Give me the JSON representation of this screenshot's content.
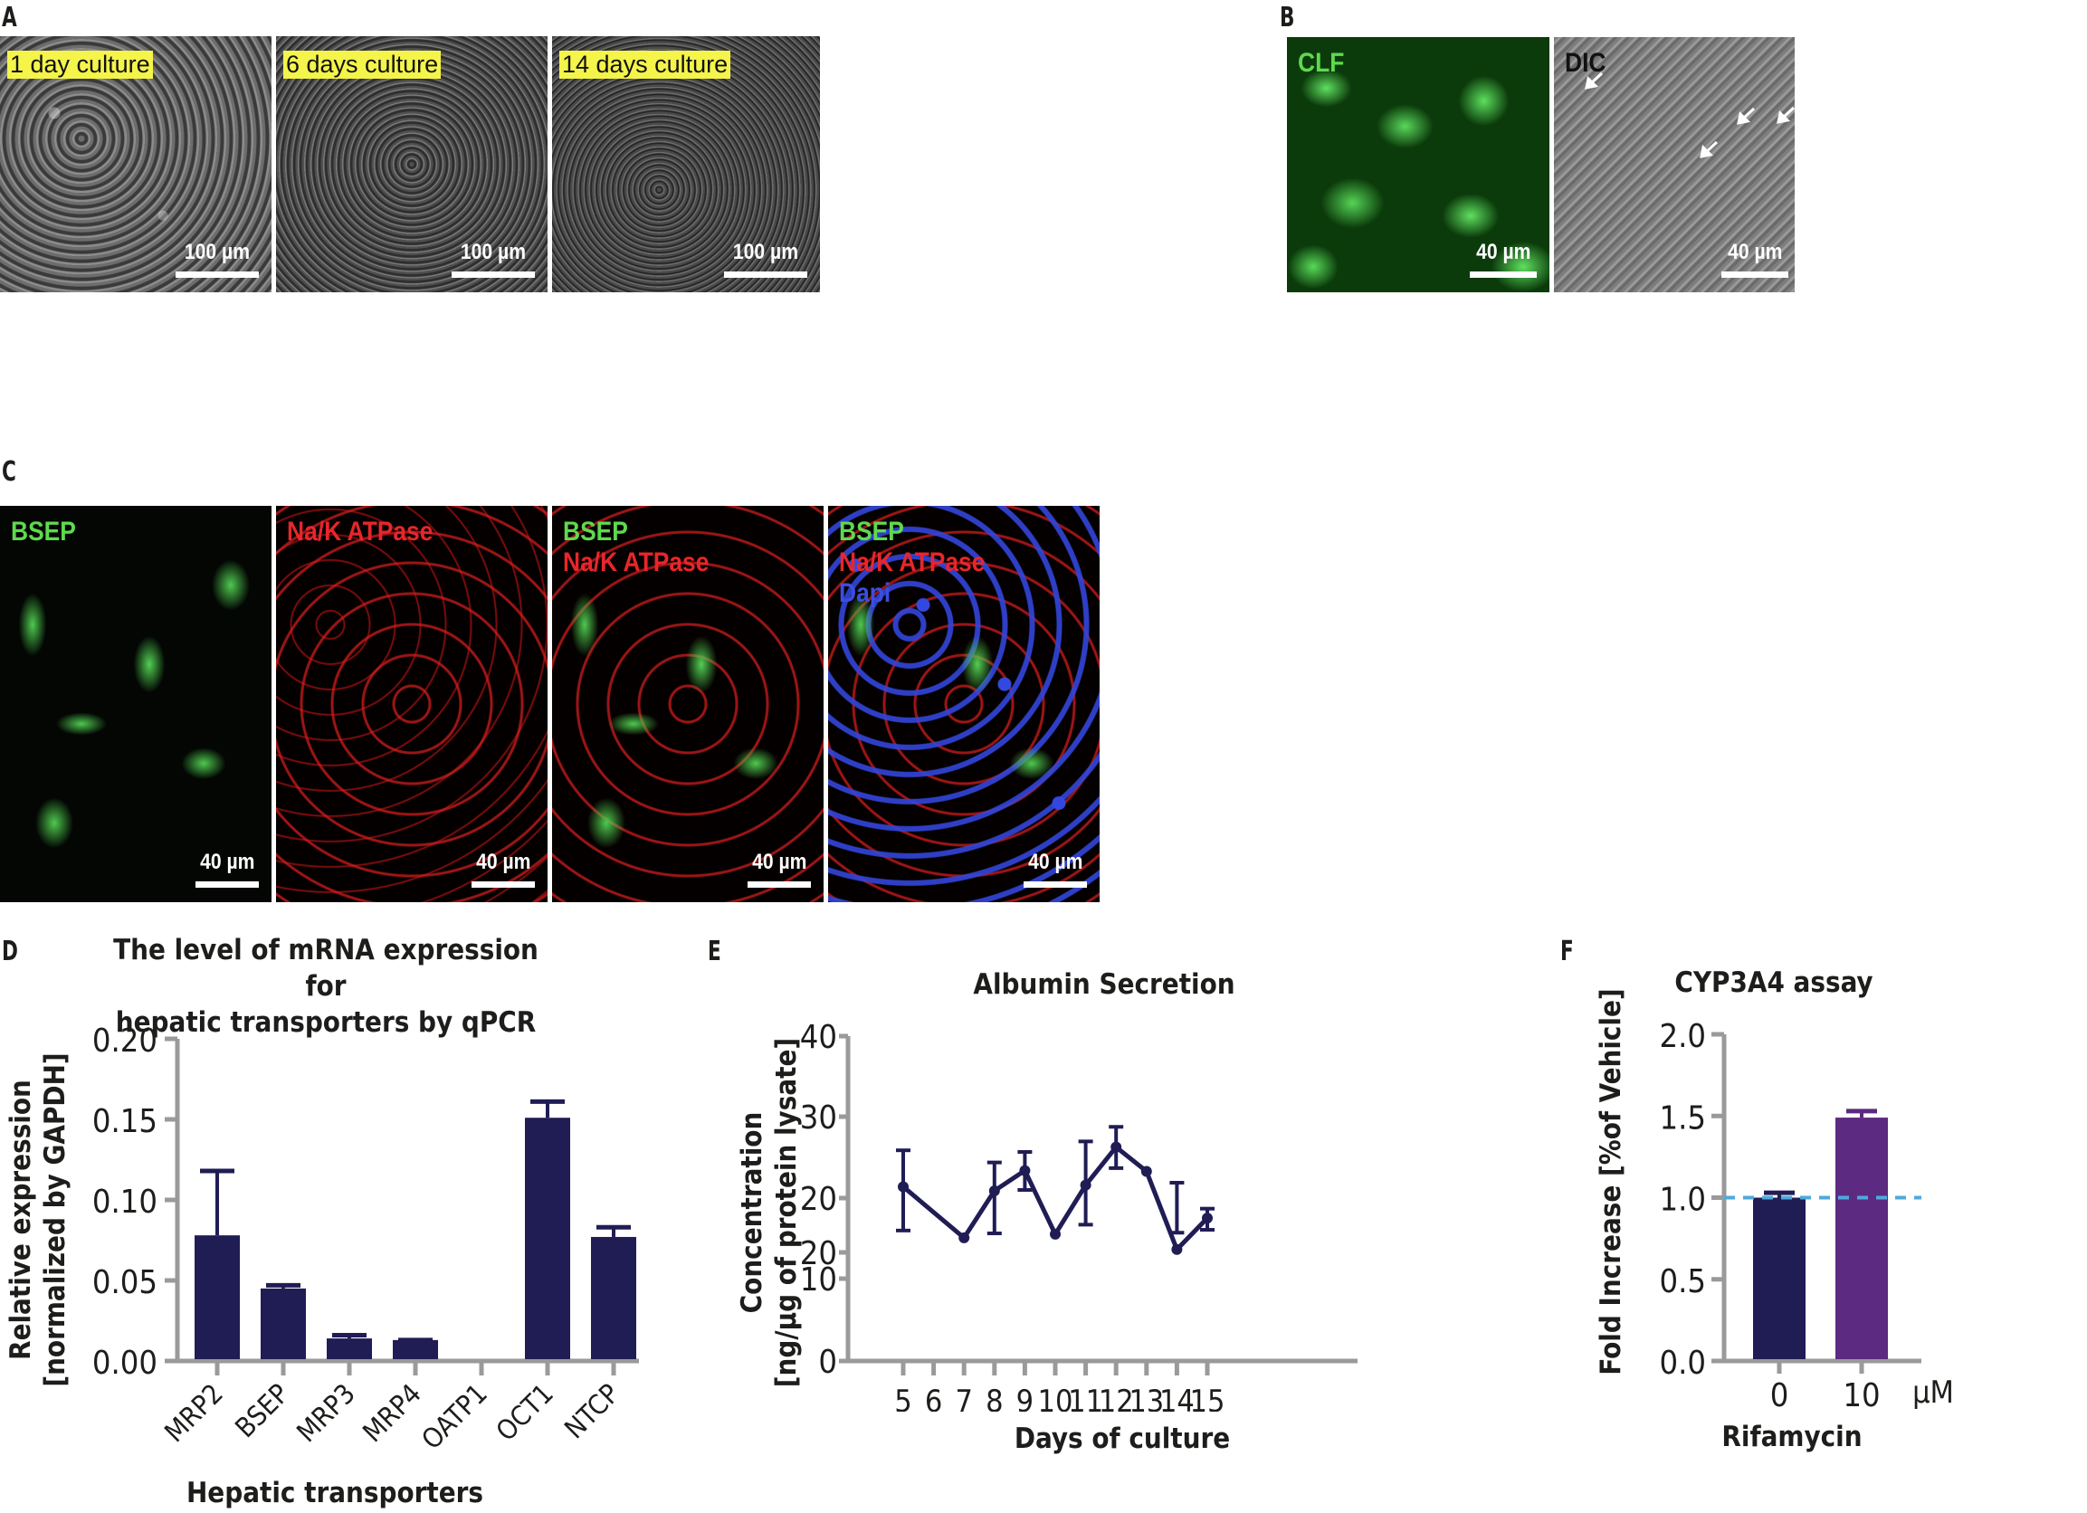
{
  "panels": {
    "A": {
      "letter": "A",
      "images": [
        {
          "label": "1 day culture",
          "scale": "100 µm"
        },
        {
          "label": "6 days culture",
          "scale": "100 µm"
        },
        {
          "label": "14 days culture",
          "scale": "100 µm"
        }
      ]
    },
    "B": {
      "letter": "B",
      "images": [
        {
          "label": "CLF",
          "scale": "40 µm"
        },
        {
          "label": "DIC",
          "scale": "40 µm"
        }
      ]
    },
    "C": {
      "letter": "C",
      "images": [
        {
          "labels": [
            "BSEP"
          ],
          "scale": "40 µm"
        },
        {
          "labels": [
            "Na/K ATPase"
          ],
          "scale": "40 µm"
        },
        {
          "labels": [
            "BSEP",
            "Na/K ATPase"
          ],
          "scale": "40 µm"
        },
        {
          "labels": [
            "BSEP",
            "Na/K ATPase",
            "Dapi"
          ],
          "scale": "40 µm"
        }
      ]
    },
    "D": {
      "letter": "D"
    },
    "E": {
      "letter": "E"
    },
    "F": {
      "letter": "F"
    }
  },
  "colors": {
    "navy": "#201d55",
    "purple": "#5c2a80",
    "axis_gray": "#9a9a9a",
    "dashed_blue": "#4fa9dc",
    "fluor_green": "#5fd94f",
    "fluor_red": "#e8262b",
    "dapi_blue": "#3a4fe0",
    "label_yellow": "#f4f44a"
  },
  "chart_data": [
    {
      "panel": "D",
      "type": "bar",
      "title": "The level of mRNA expression for hepatic transporters by qPCR",
      "title_lines": [
        "The level of mRNA expression for",
        "hepatic transporters by qPCR"
      ],
      "xlabel": "Hepatic transporters",
      "ylabel": "Relative expression",
      "ylabel2": "[normalized by GAPDH]",
      "ylim": [
        0,
        0.2
      ],
      "yticks": [
        "0.00",
        "0.05",
        "0.10",
        "0.15",
        "0.20"
      ],
      "categories": [
        "MRP2",
        "BSEP",
        "MRP3",
        "MRP4",
        "OATP1",
        "OCT1",
        "NTCP"
      ],
      "values": [
        0.078,
        0.045,
        0.014,
        0.013,
        0.0,
        0.151,
        0.077
      ],
      "error_upper": [
        0.118,
        0.047,
        0.016,
        0.013,
        0.0,
        0.161,
        0.083
      ],
      "grid": false
    },
    {
      "panel": "E",
      "type": "line",
      "title": "Albumin Secretion",
      "xlabel": "Days of culture",
      "ylabel": "Concentration",
      "ylabel2": "[ng/µg of protein lysate]",
      "yticks": [
        "0",
        "10",
        "20",
        "20",
        "30",
        "40"
      ],
      "xticks": [
        "5",
        "6",
        "7",
        "8",
        "9",
        "10",
        "11",
        "12",
        "13",
        "14",
        "15"
      ],
      "x": [
        5,
        7,
        8,
        9,
        10,
        11,
        12,
        13,
        14,
        15
      ],
      "values": [
        21.4,
        18.0,
        20.9,
        23.4,
        17.5,
        21.6,
        26.3,
        23.3,
        19.6,
        15.3
      ],
      "error_low": [
        17.0,
        18.0,
        17.4,
        21.0,
        17.5,
        16.2,
        23.7,
        23.3,
        17.3,
        14.0
      ],
      "error_high": [
        25.9,
        18.0,
        24.4,
        25.7,
        17.5,
        27.0,
        28.8,
        23.3,
        21.9,
        16.9
      ],
      "ylim": [
        0,
        40
      ],
      "note": "broken y-axis with duplicated tick label 20",
      "grid": false
    },
    {
      "panel": "F",
      "type": "bar",
      "title": "CYP3A4 assay",
      "xlabel": "Rifamycin",
      "x_unit": "µM",
      "ylabel": "Fold Increase [%of Vehicle]",
      "ylim": [
        0,
        2.0
      ],
      "yticks": [
        "0.0",
        "0.5",
        "1.0",
        "1.5",
        "2.0"
      ],
      "categories": [
        "0",
        "10"
      ],
      "values": [
        1.0,
        1.49
      ],
      "error_upper": [
        1.03,
        1.53
      ],
      "reference_line": 1.0,
      "grid": false
    }
  ]
}
